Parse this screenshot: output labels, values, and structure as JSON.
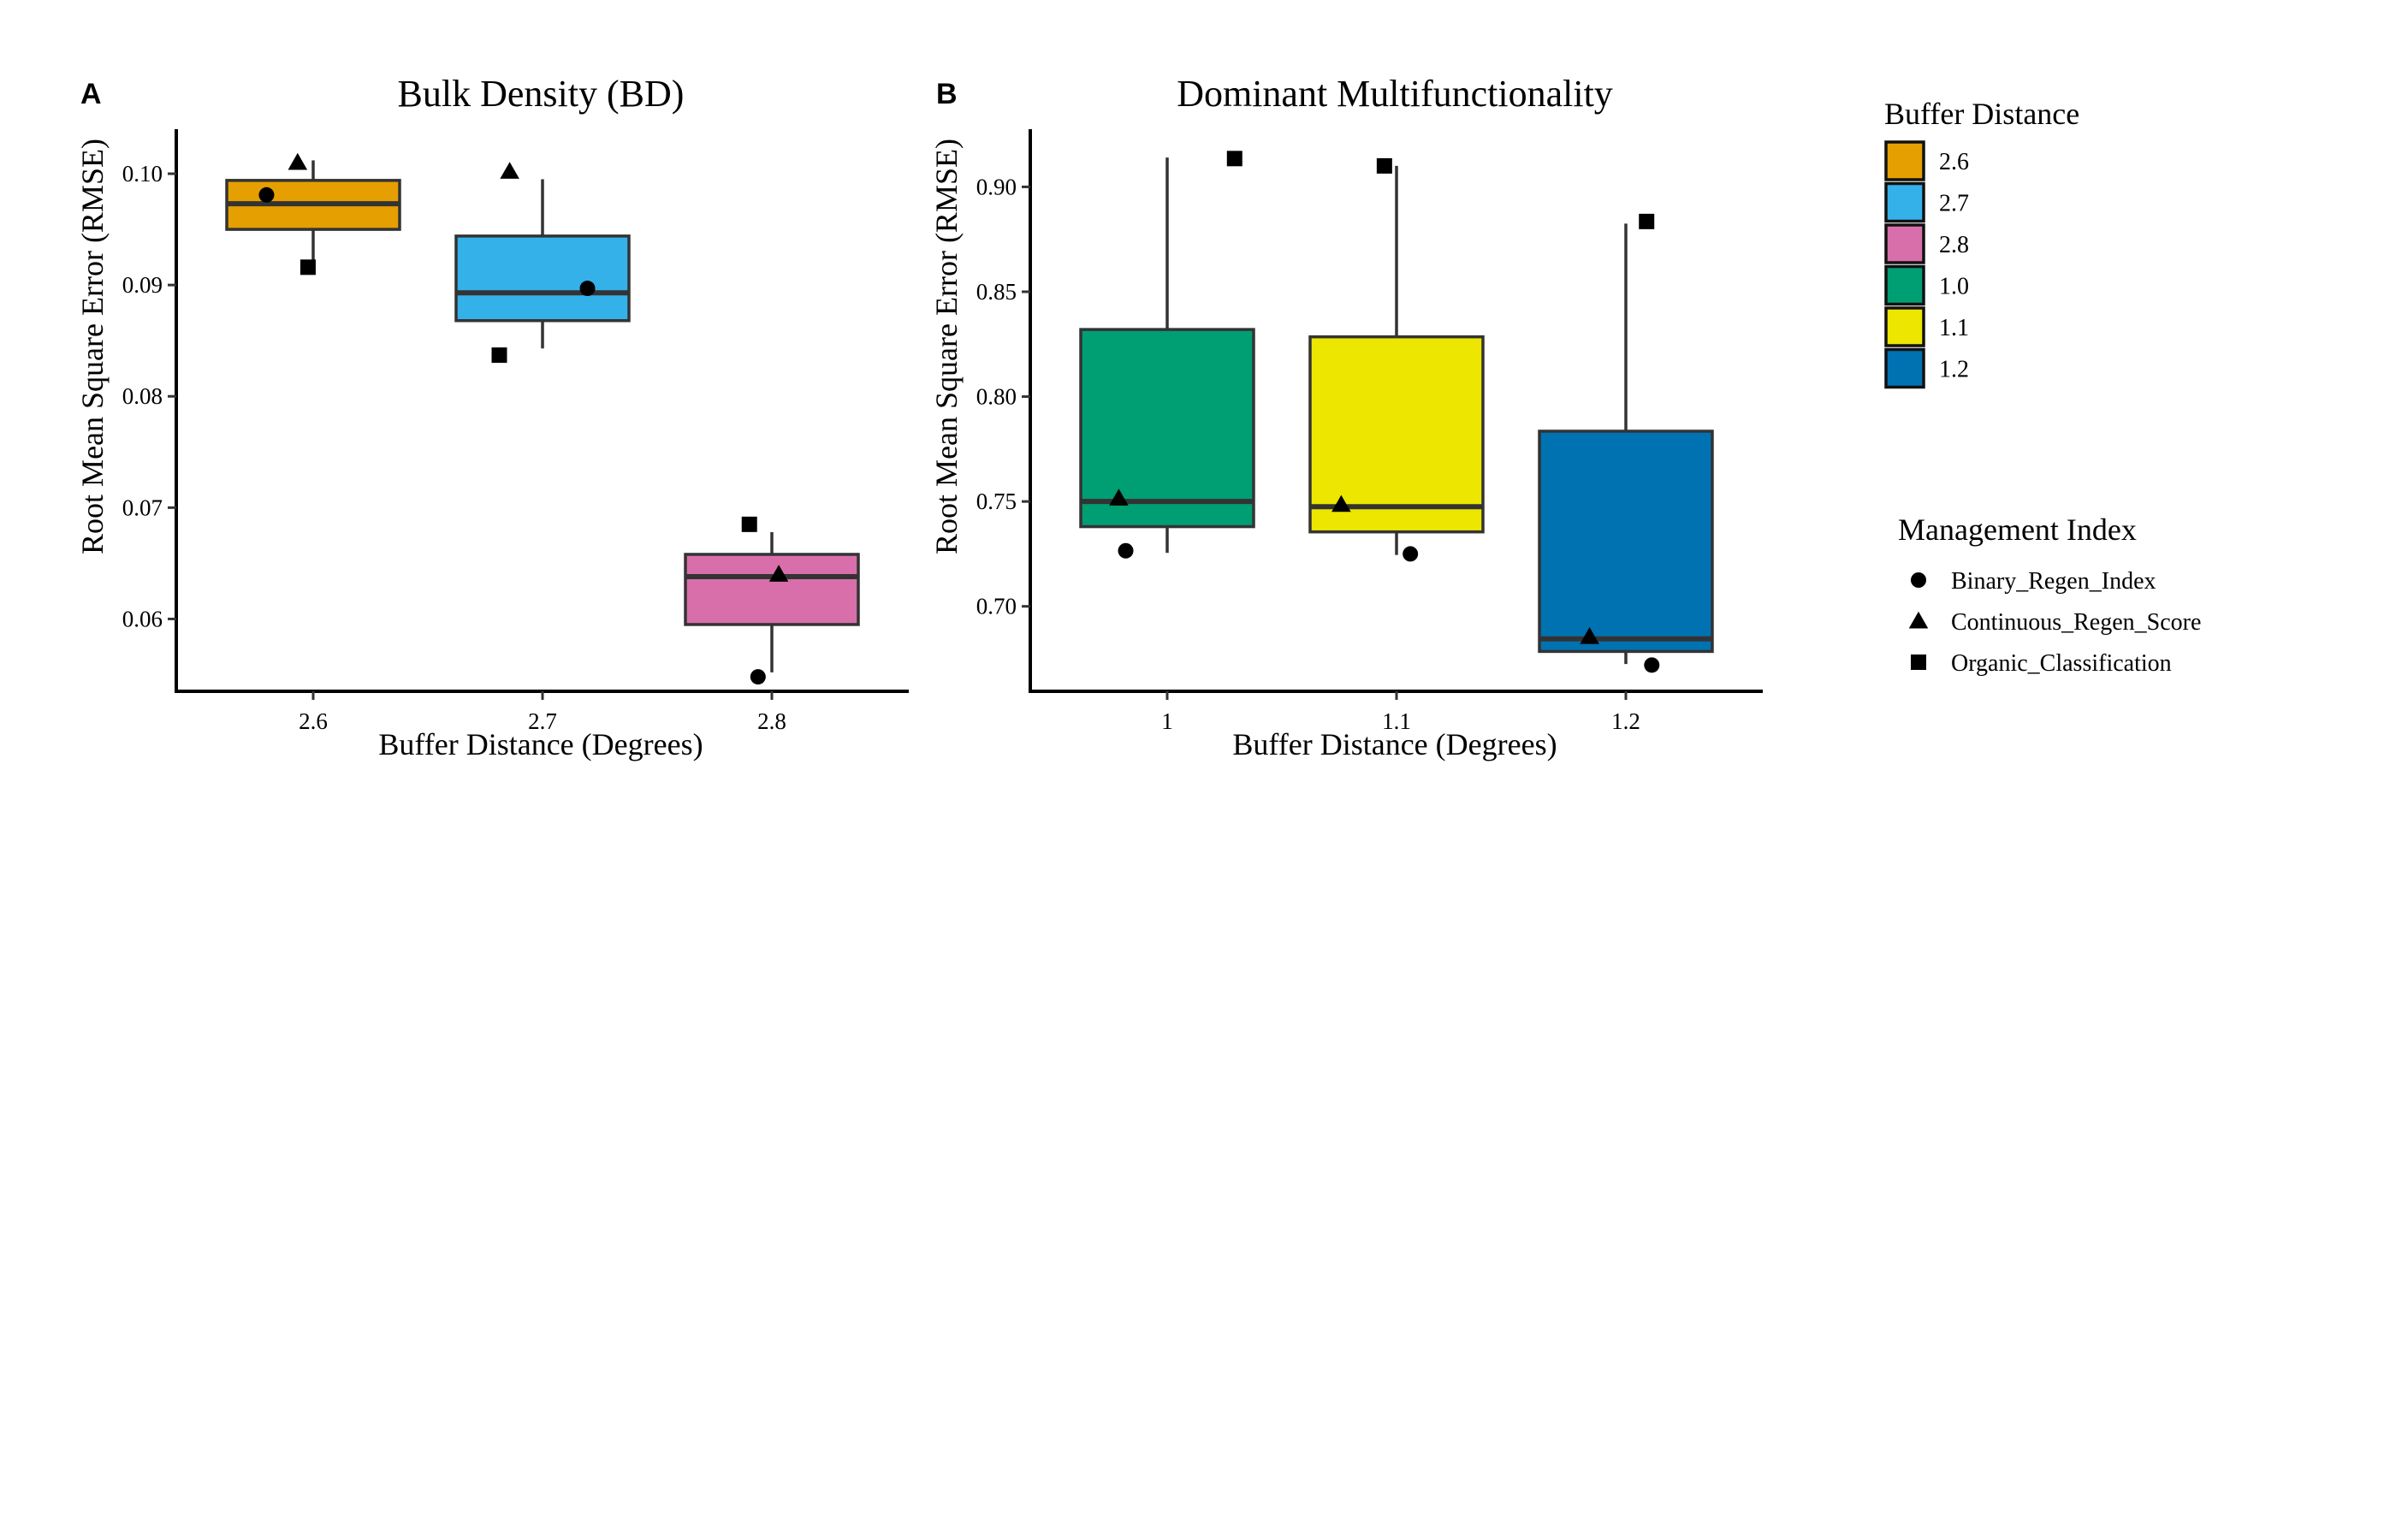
{
  "chart_data": [
    {
      "panel_label": "A",
      "type": "box",
      "title": "Bulk Density (BD)",
      "xlabel": "Buffer Distance (Degrees)",
      "ylabel": "Root Mean Square Error (RMSE)",
      "ylim": [
        0.0535,
        0.104
      ],
      "yticks": [
        "0.06",
        "0.07",
        "0.08",
        "0.09",
        "0.10"
      ],
      "grid": false,
      "categories": [
        "2.6",
        "2.7",
        "2.8"
      ],
      "boxes": [
        {
          "category": "2.6",
          "color": "#E69F00",
          "whisker_low": 0.0922,
          "q1": 0.095,
          "median": 0.0973,
          "q3": 0.0994,
          "whisker_high": 0.1012
        },
        {
          "category": "2.7",
          "color": "#35B1EA",
          "whisker_low": 0.0843,
          "q1": 0.0868,
          "median": 0.0893,
          "q3": 0.0944,
          "whisker_high": 0.0995
        },
        {
          "category": "2.8",
          "color": "#D86FAA",
          "whisker_low": 0.0552,
          "q1": 0.0595,
          "median": 0.0638,
          "q3": 0.0658,
          "whisker_high": 0.0678
        }
      ],
      "points": [
        {
          "category": "2.6",
          "offset": -0.27,
          "y": 0.0981,
          "shape": "circle"
        },
        {
          "category": "2.6",
          "offset": -0.09,
          "y": 0.101,
          "shape": "triangle"
        },
        {
          "category": "2.6",
          "offset": -0.03,
          "y": 0.0916,
          "shape": "square"
        },
        {
          "category": "2.7",
          "offset": -0.25,
          "y": 0.0837,
          "shape": "square"
        },
        {
          "category": "2.7",
          "offset": -0.19,
          "y": 0.1002,
          "shape": "triangle"
        },
        {
          "category": "2.7",
          "offset": 0.26,
          "y": 0.0897,
          "shape": "circle"
        },
        {
          "category": "2.8",
          "offset": -0.13,
          "y": 0.0685,
          "shape": "square"
        },
        {
          "category": "2.8",
          "offset": 0.04,
          "y": 0.064,
          "shape": "triangle"
        },
        {
          "category": "2.8",
          "offset": -0.08,
          "y": 0.0548,
          "shape": "circle"
        }
      ]
    },
    {
      "panel_label": "B",
      "type": "box",
      "title": "Dominant Multifunctionality",
      "xlabel": "Buffer Distance (Degrees)",
      "ylabel": "Root Mean Square Error (RMSE)",
      "ylim": [
        0.6595,
        0.9275
      ],
      "yticks": [
        "0.70",
        "0.75",
        "0.80",
        "0.85",
        "0.90"
      ],
      "grid": false,
      "categories": [
        "1",
        "1.1",
        "1.2"
      ],
      "boxes": [
        {
          "category": "1",
          "color": "#009E73",
          "whisker_low": 0.7255,
          "q1": 0.738,
          "median": 0.75,
          "q3": 0.832,
          "whisker_high": 0.914
        },
        {
          "category": "1.1",
          "color": "#EDE600",
          "whisker_low": 0.7245,
          "q1": 0.7355,
          "median": 0.7475,
          "q3": 0.8285,
          "whisker_high": 0.91
        },
        {
          "category": "1.2",
          "color": "#0072B2",
          "whisker_low": 0.6725,
          "q1": 0.6785,
          "median": 0.6845,
          "q3": 0.7835,
          "whisker_high": 0.8825
        }
      ],
      "points": [
        {
          "category": "1",
          "offset": -0.24,
          "y": 0.7265,
          "shape": "circle"
        },
        {
          "category": "1",
          "offset": -0.28,
          "y": 0.7515,
          "shape": "triangle"
        },
        {
          "category": "1",
          "offset": 0.39,
          "y": 0.9135,
          "shape": "square"
        },
        {
          "category": "1.1",
          "offset": -0.07,
          "y": 0.91,
          "shape": "square"
        },
        {
          "category": "1.1",
          "offset": -0.32,
          "y": 0.7485,
          "shape": "triangle"
        },
        {
          "category": "1.1",
          "offset": 0.08,
          "y": 0.725,
          "shape": "circle"
        },
        {
          "category": "1.2",
          "offset": 0.12,
          "y": 0.8835,
          "shape": "square"
        },
        {
          "category": "1.2",
          "offset": -0.21,
          "y": 0.6855,
          "shape": "triangle"
        },
        {
          "category": "1.2",
          "offset": 0.15,
          "y": 0.672,
          "shape": "circle"
        }
      ]
    }
  ],
  "legend_fill": {
    "title": "Buffer Distance",
    "items": [
      {
        "label": "2.6",
        "color": "#E69F00"
      },
      {
        "label": "2.7",
        "color": "#35B1EA"
      },
      {
        "label": "2.8",
        "color": "#D86FAA"
      },
      {
        "label": "1.0",
        "color": "#009E73"
      },
      {
        "label": "1.1",
        "color": "#EDE600"
      },
      {
        "label": "1.2",
        "color": "#0072B2"
      }
    ]
  },
  "legend_shape": {
    "title": "Management Index",
    "items": [
      {
        "label": "Binary_Regen_Index",
        "shape": "circle"
      },
      {
        "label": "Continuous_Regen_Score",
        "shape": "triangle"
      },
      {
        "label": "Organic_Classification",
        "shape": "square"
      }
    ]
  }
}
